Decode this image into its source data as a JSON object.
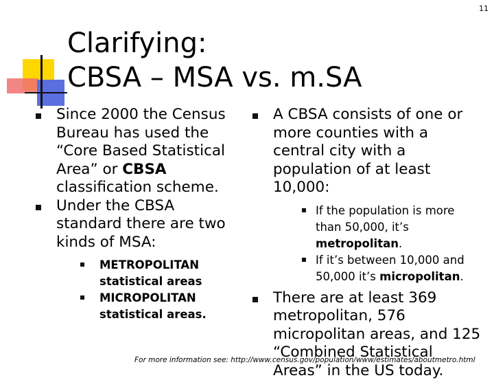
{
  "slide_number": "11",
  "title": {
    "line1": "Clarifying:",
    "line2": "CBSA – MSA vs. m.SA"
  },
  "left": {
    "b1_a": "Since 2000 the Census Bureau has used the “Core Based Statistical Area” or ",
    "b1_bold": "CBSA",
    "b1_b": " classification scheme.",
    "b2": "Under the CBSA standard there are two kinds of MSA:",
    "sub": [
      "METROPOLITAN statistical areas",
      "MICROPOLITAN statistical areas."
    ]
  },
  "right": {
    "b1": "A CBSA consists of one or more counties with a central city with a population of at least 10,000:",
    "s1_a": "If the population is more than 50,000, it’s ",
    "s1_bold": "metropolitan",
    "s1_b": ".",
    "s2_a": "If it’s between 10,000 and 50,000 it’s ",
    "s2_bold": "micropolitan",
    "s2_b": ".",
    "b2": "There are at least 369 metropolitan, 576 micropolitan areas, and 125 “Combined Statistical Areas” in the US today."
  },
  "footer": "For more information see: http://www.census.gov/population/www/estimates/aboutmetro.html"
}
